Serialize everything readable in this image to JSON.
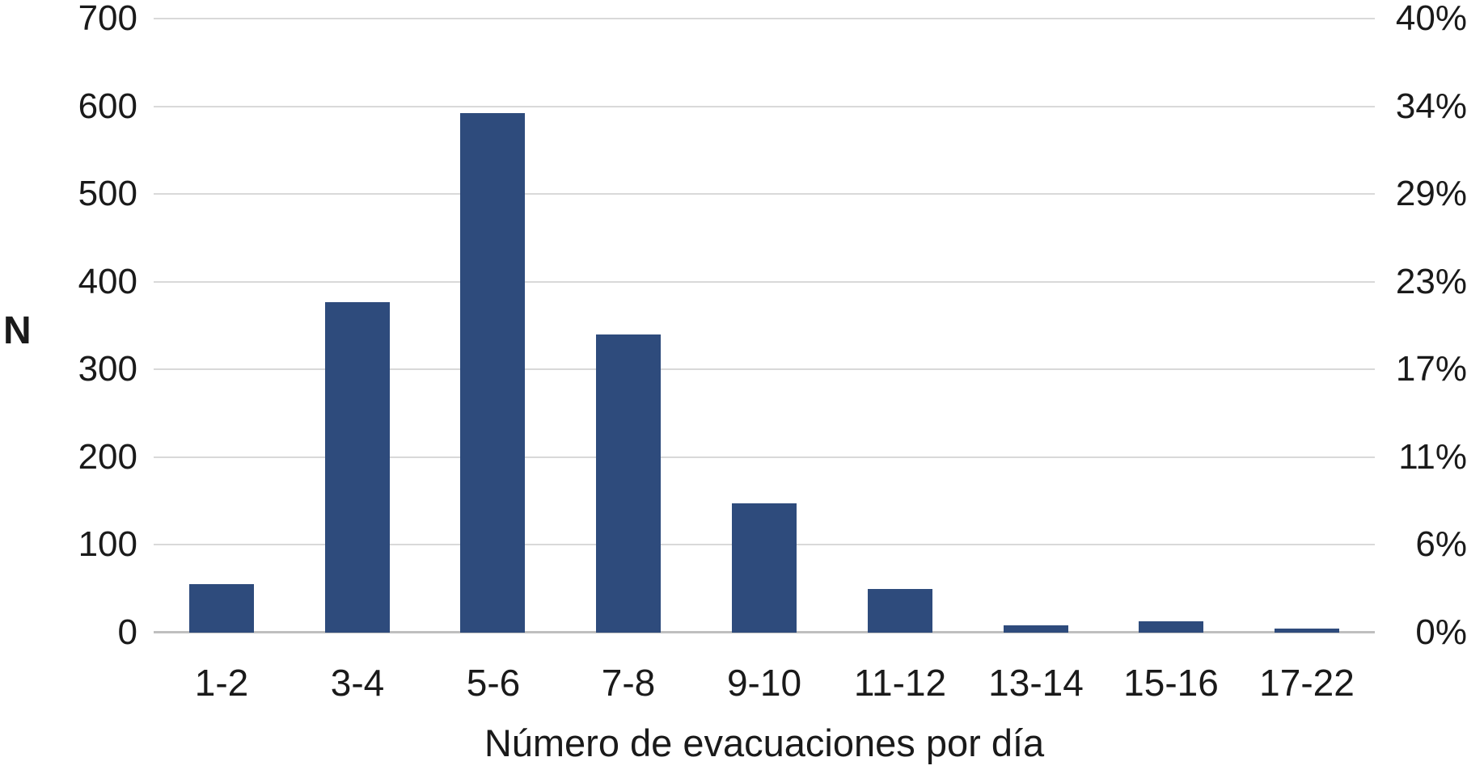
{
  "chart_data": {
    "type": "bar",
    "title": "",
    "xlabel": "Número de evacuaciones por día",
    "ylabel_left": "N",
    "categories": [
      "1-2",
      "3-4",
      "5-6",
      "7-8",
      "9-10",
      "11-12",
      "13-14",
      "15-16",
      "17-22"
    ],
    "values": [
      55,
      377,
      592,
      340,
      147,
      50,
      8,
      13,
      5
    ],
    "left_axis": {
      "ticks": [
        "700",
        "600",
        "500",
        "400",
        "300",
        "200",
        "100",
        "0"
      ],
      "max": 700,
      "min": 0
    },
    "right_axis": {
      "ticks": [
        "40%",
        "34%",
        "29%",
        "23%",
        "17%",
        "11%",
        "6%",
        "0%"
      ],
      "max_percent": 40,
      "min_percent": 0
    },
    "grid": true,
    "legend": false,
    "colors": {
      "bar": "#2e4b7c",
      "gridline": "#d9d9d9",
      "axis_line": "#bfbfbf",
      "text": "#1a1a1a",
      "background": "#ffffff"
    }
  }
}
